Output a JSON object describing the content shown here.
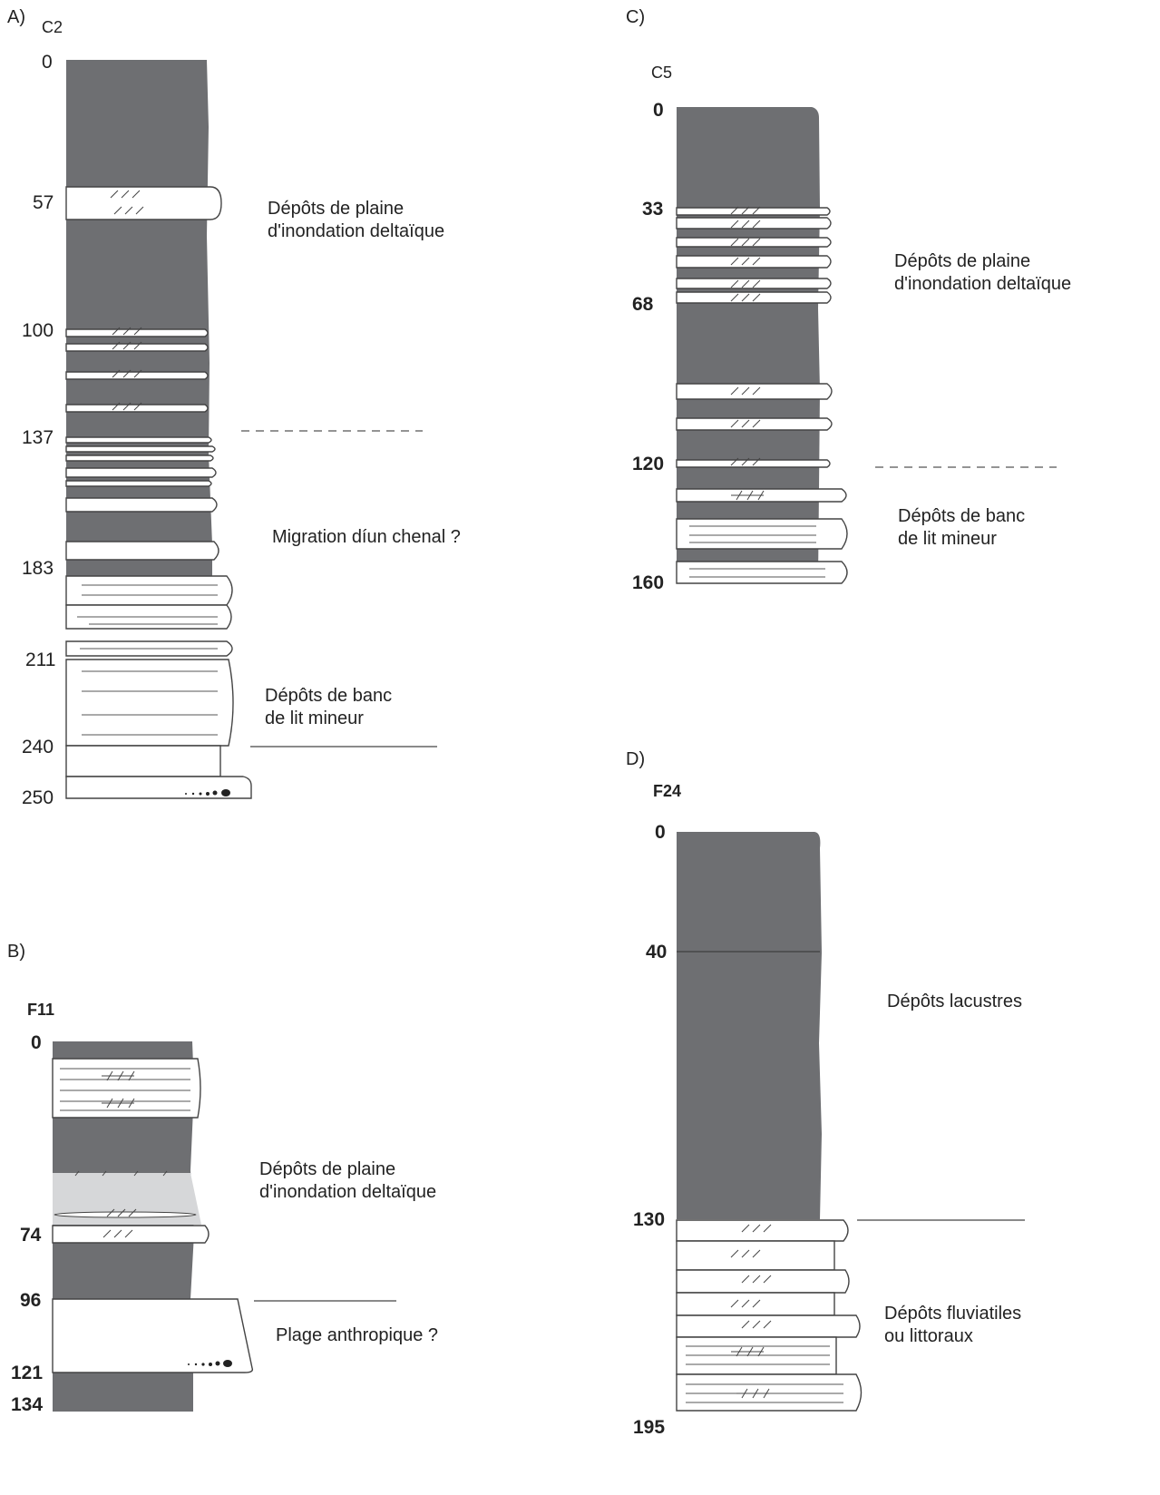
{
  "panels": {
    "A": {
      "label": "A)",
      "core": "C2",
      "depths": [
        "0",
        "57",
        "100",
        "137",
        "183",
        "211",
        "240",
        "250"
      ],
      "notes": [
        "Dépôts de plaine\nd'inondation deltaïque",
        "Migration díun chenal ?",
        "Dépôts de banc\nde lit mineur"
      ]
    },
    "B": {
      "label": "B)",
      "core": "F11",
      "depths": [
        "0",
        "74",
        "96",
        "121",
        "134"
      ],
      "notes": [
        "Dépôts de plaine\nd'inondation deltaïque",
        "Plage anthropique ?"
      ]
    },
    "C": {
      "label": "C)",
      "core": "C5",
      "depths": [
        "0",
        "33",
        "68",
        "120",
        "160"
      ],
      "notes": [
        "Dépôts de plaine\nd'inondation deltaïque",
        "Dépôts de banc\nde lit mineur"
      ]
    },
    "D": {
      "label": "D)",
      "core": "F24",
      "depths": [
        "0",
        "40",
        "130",
        "195"
      ],
      "notes": [
        "Dépôts lacustres",
        "Dépôts fluviatiles\nou littoraux"
      ]
    }
  },
  "colors": {
    "fine_sediment": "#6e6f72",
    "light_sediment": "#d6d7d9",
    "sand": "#ffffff"
  }
}
